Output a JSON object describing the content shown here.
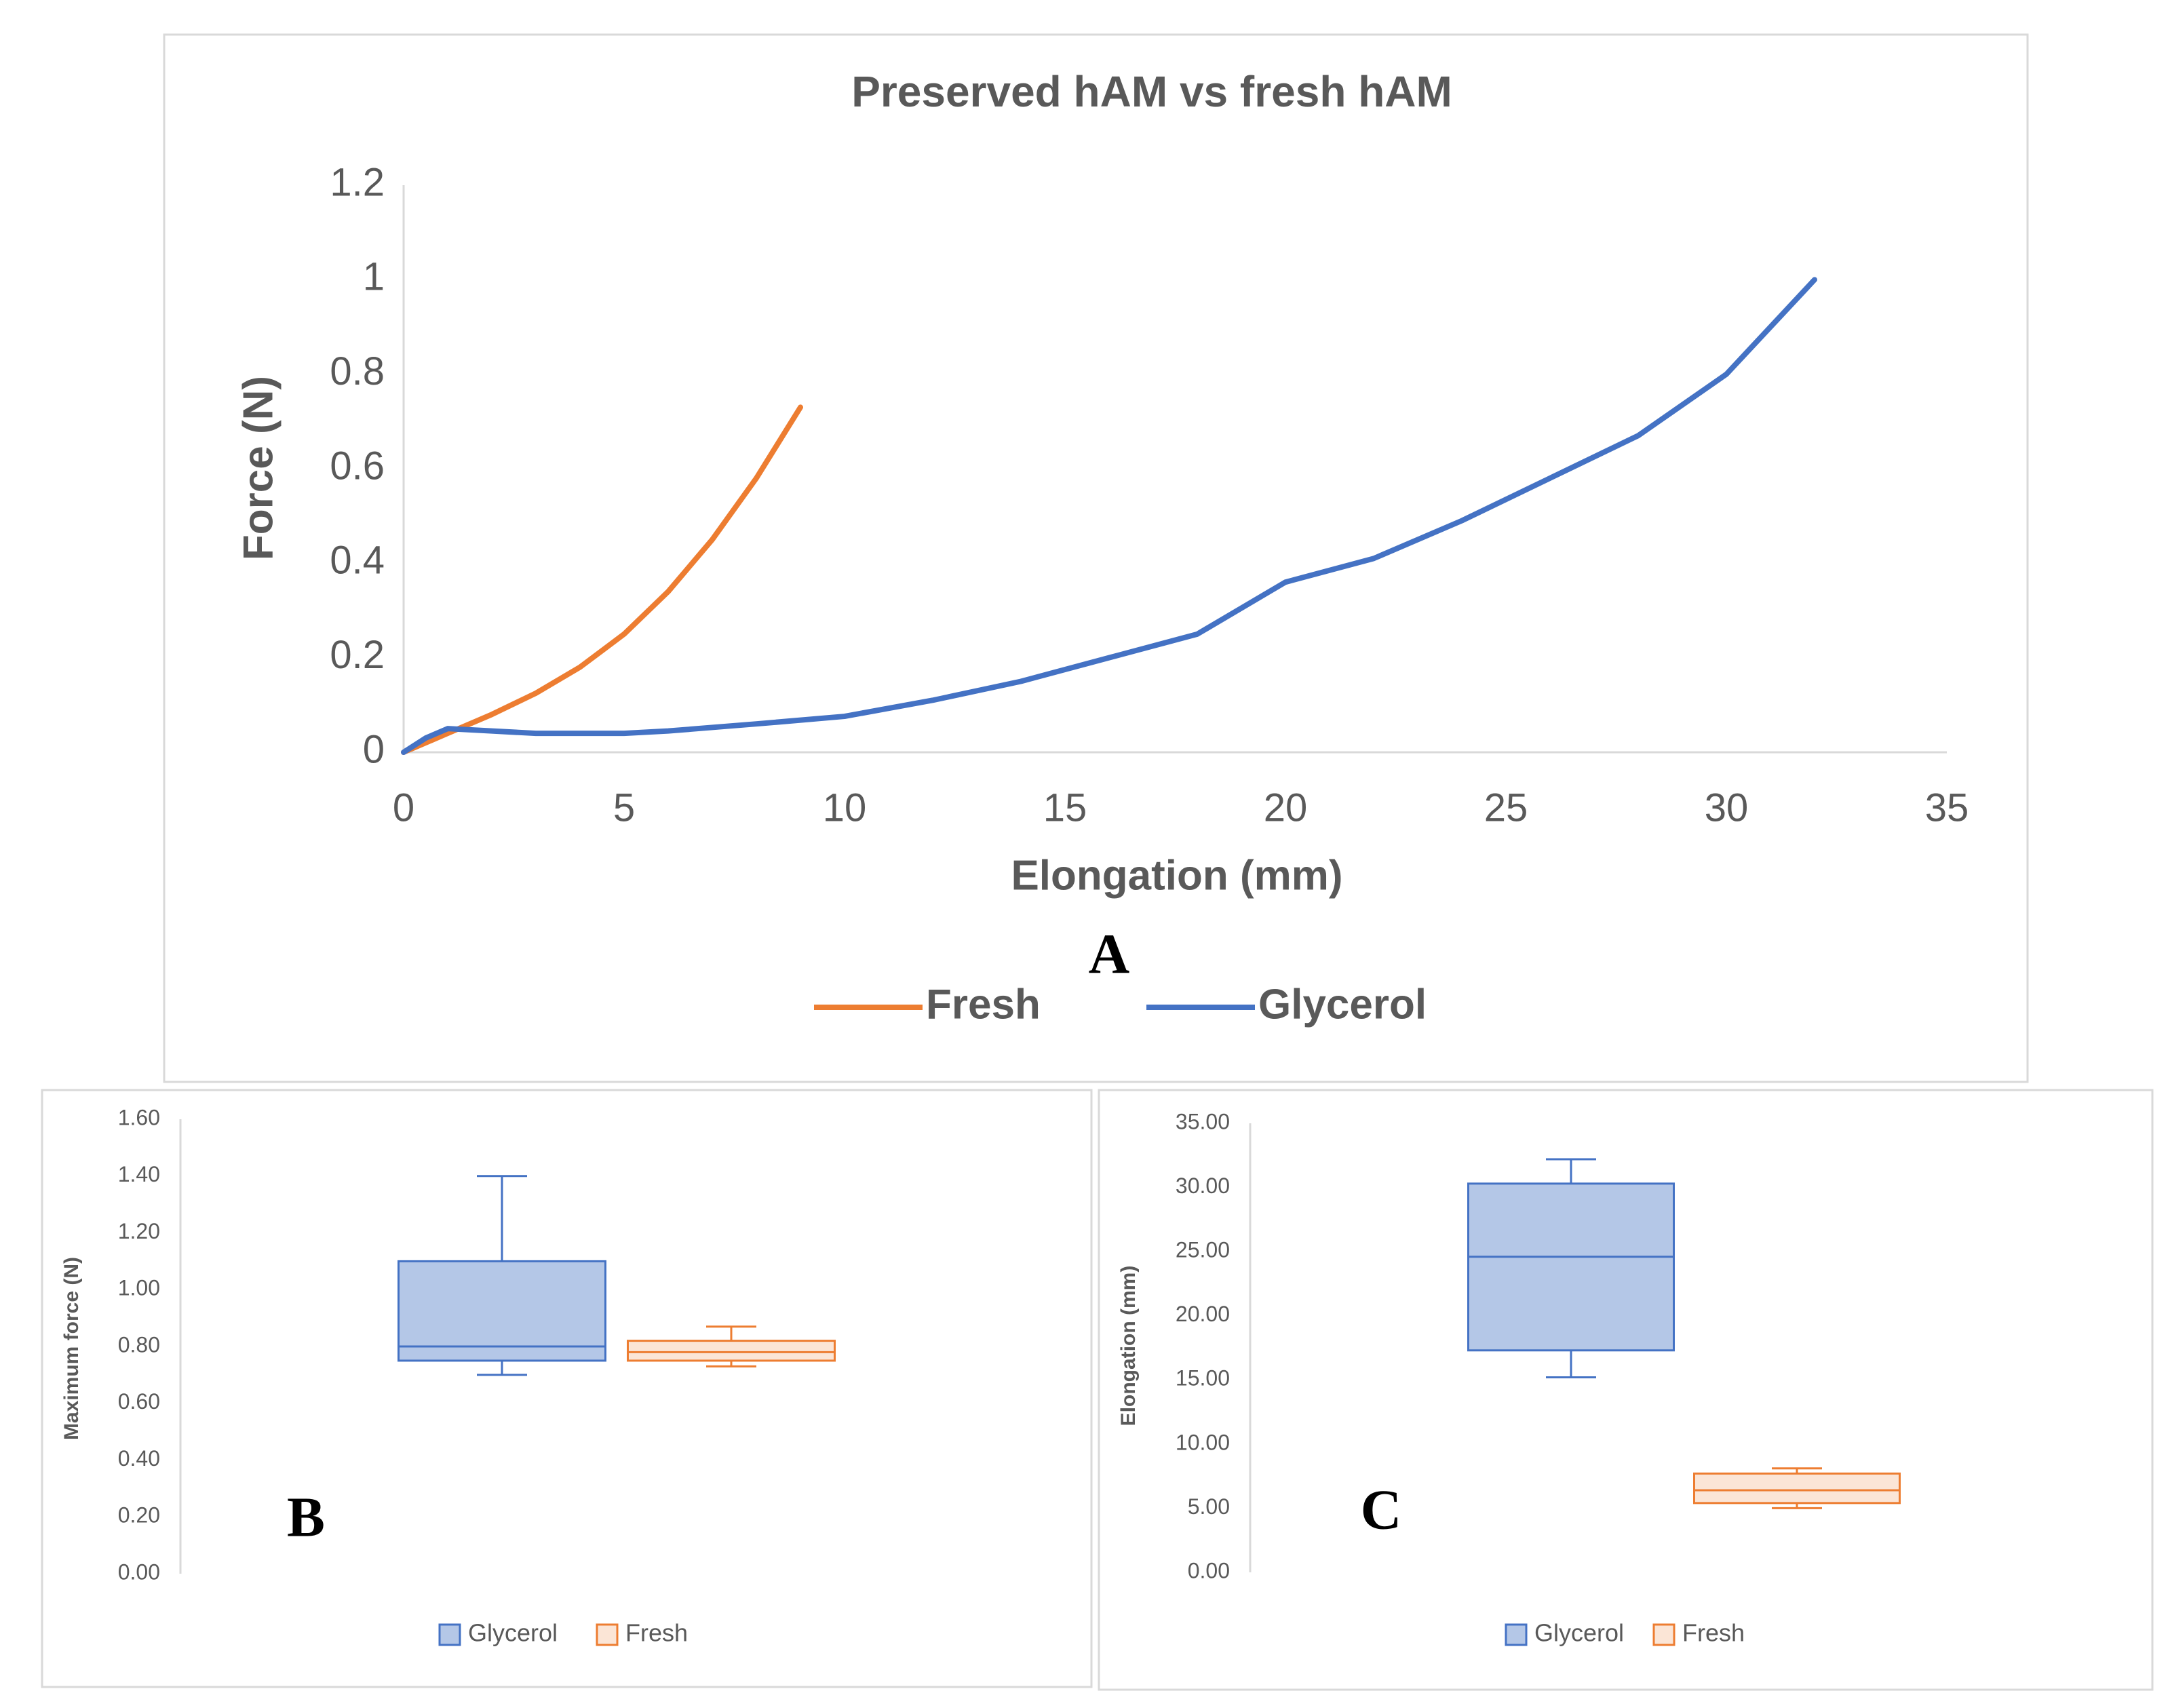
{
  "chart_data": [
    {
      "type": "line",
      "title": "Preserved hAM vs fresh hAM",
      "x_label": "Elongation (mm)",
      "y_label": "Force (N)",
      "annotation": "A",
      "xlim": [
        0,
        35
      ],
      "xticks": [
        0,
        5,
        10,
        15,
        20,
        25,
        30,
        35
      ],
      "ylim": [
        0,
        1.2
      ],
      "yticks": [
        0,
        0.2,
        0.4,
        0.6,
        0.8,
        1,
        1.2
      ],
      "grid": false,
      "legend": "bottom",
      "series": [
        {
          "name": "Fresh",
          "color": "#ed7d31",
          "x": [
            0,
            1,
            2,
            3,
            4,
            5,
            6,
            7,
            8,
            9
          ],
          "values": [
            0,
            0.04,
            0.08,
            0.125,
            0.18,
            0.25,
            0.34,
            0.45,
            0.58,
            0.73
          ]
        },
        {
          "name": "Glycerol",
          "color": "#4472c4",
          "x": [
            0,
            0.5,
            1,
            2,
            3,
            4,
            5,
            6,
            8,
            10,
            12,
            14,
            16,
            18,
            20,
            22,
            24,
            26,
            28,
            30,
            32
          ],
          "values": [
            0,
            0.03,
            0.05,
            0.045,
            0.04,
            0.04,
            0.04,
            0.045,
            0.06,
            0.076,
            0.11,
            0.15,
            0.2,
            0.25,
            0.36,
            0.41,
            0.49,
            0.58,
            0.67,
            0.8,
            1.0
          ]
        }
      ]
    },
    {
      "type": "box",
      "y_label": "Maximum force (N)",
      "annotation": "B",
      "ylim": [
        0,
        1.6
      ],
      "yticks": [
        {
          "value": 0,
          "label": "0.00"
        },
        {
          "value": 0.2,
          "label": "0.20"
        },
        {
          "value": 0.4,
          "label": "0.40"
        },
        {
          "value": 0.6,
          "label": "0.60"
        },
        {
          "value": 0.8,
          "label": "0.80"
        },
        {
          "value": 1,
          "label": "1.00"
        },
        {
          "value": 1.2,
          "label": "1.20"
        },
        {
          "value": 1.4,
          "label": "1.40"
        },
        {
          "value": 1.6,
          "label": "1.60"
        }
      ],
      "grid": false,
      "legend": "bottom",
      "series": [
        {
          "name": "Glycerol",
          "color": "#4472c4",
          "fill": "#b4c7e7",
          "min": 0.7,
          "q1": 0.75,
          "median": 0.8,
          "q3": 1.1,
          "max": 1.4
        },
        {
          "name": "Fresh",
          "color": "#ed7d31",
          "fill": "#fbe5d6",
          "min": 0.73,
          "q1": 0.75,
          "median": 0.78,
          "q3": 0.82,
          "max": 0.87
        }
      ]
    },
    {
      "type": "box",
      "y_label": "Elongation  (mm)",
      "annotation": "C",
      "ylim": [
        0,
        35
      ],
      "yticks": [
        {
          "value": 0,
          "label": "0.00"
        },
        {
          "value": 5,
          "label": "5.00"
        },
        {
          "value": 10,
          "label": "10.00"
        },
        {
          "value": 15,
          "label": "15.00"
        },
        {
          "value": 20,
          "label": "20.00"
        },
        {
          "value": 25,
          "label": "25.00"
        },
        {
          "value": 30,
          "label": "30.00"
        },
        {
          "value": 35,
          "label": "35.00"
        }
      ],
      "grid": false,
      "legend": "bottom",
      "series": [
        {
          "name": "Glycerol",
          "color": "#4472c4",
          "fill": "#b4c7e7",
          "min": 15.2,
          "q1": 17.3,
          "median": 24.6,
          "q3": 30.3,
          "max": 32.2
        },
        {
          "name": "Fresh",
          "color": "#ed7d31",
          "fill": "#fbe5d6",
          "min": 5.0,
          "q1": 5.4,
          "median": 6.4,
          "q3": 7.7,
          "max": 8.1
        }
      ]
    }
  ]
}
